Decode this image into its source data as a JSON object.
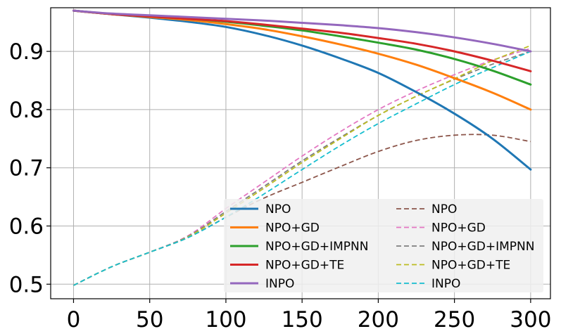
{
  "chart_data": {
    "type": "line",
    "title": "",
    "xlabel": "",
    "ylabel": "",
    "xlim": [
      -15,
      313
    ],
    "ylim": [
      0.475,
      0.975
    ],
    "x_ticks": [
      0,
      50,
      100,
      150,
      200,
      250,
      300
    ],
    "y_ticks": [
      0.5,
      0.6,
      0.7,
      0.8,
      0.9
    ],
    "grid": true,
    "legend_placement": "lower-right",
    "x": [
      0,
      25,
      50,
      75,
      100,
      125,
      150,
      175,
      200,
      225,
      250,
      275,
      300
    ],
    "series": [
      {
        "name": "NPO",
        "color": "#1f77b4",
        "style": "solid",
        "values": [
          0.97,
          0.964,
          0.958,
          0.951,
          0.942,
          0.928,
          0.91,
          0.888,
          0.863,
          0.83,
          0.793,
          0.75,
          0.697
        ]
      },
      {
        "name": "NPO+GD",
        "color": "#ff7f0e",
        "style": "solid",
        "values": [
          0.97,
          0.964,
          0.959,
          0.954,
          0.947,
          0.938,
          0.926,
          0.912,
          0.896,
          0.877,
          0.854,
          0.829,
          0.8
        ]
      },
      {
        "name": "NPO+GD+IMPNN",
        "color": "#2ca02c",
        "style": "solid",
        "values": [
          0.97,
          0.964,
          0.96,
          0.956,
          0.951,
          0.944,
          0.936,
          0.926,
          0.915,
          0.903,
          0.887,
          0.867,
          0.843
        ]
      },
      {
        "name": "NPO+GD+TE",
        "color": "#d62728",
        "style": "solid",
        "values": [
          0.97,
          0.964,
          0.96,
          0.956,
          0.952,
          0.946,
          0.939,
          0.932,
          0.923,
          0.913,
          0.9,
          0.884,
          0.866
        ]
      },
      {
        "name": "INPO",
        "color": "#9467bd",
        "style": "solid",
        "values": [
          0.97,
          0.965,
          0.962,
          0.959,
          0.956,
          0.953,
          0.949,
          0.945,
          0.94,
          0.933,
          0.924,
          0.913,
          0.9
        ]
      },
      {
        "name": "NPO",
        "color": "#8c564b",
        "style": "dashed",
        "values": [
          0.498,
          0.53,
          0.555,
          0.58,
          0.615,
          0.648,
          0.675,
          0.702,
          0.728,
          0.747,
          0.756,
          0.756,
          0.745
        ]
      },
      {
        "name": "NPO+GD",
        "color": "#e377c2",
        "style": "dashed",
        "values": [
          0.498,
          0.53,
          0.555,
          0.583,
          0.63,
          0.675,
          0.72,
          0.762,
          0.8,
          0.832,
          0.86,
          0.885,
          0.905
        ]
      },
      {
        "name": "NPO+GD+IMPNN",
        "color": "#7f7f7f",
        "style": "dashed",
        "values": [
          0.498,
          0.53,
          0.555,
          0.582,
          0.625,
          0.668,
          0.712,
          0.752,
          0.79,
          0.823,
          0.852,
          0.878,
          0.9
        ]
      },
      {
        "name": "NPO+GD+TE",
        "color": "#bcbd22",
        "style": "dashed",
        "values": [
          0.498,
          0.53,
          0.555,
          0.581,
          0.622,
          0.665,
          0.709,
          0.75,
          0.79,
          0.823,
          0.853,
          0.884,
          0.91
        ]
      },
      {
        "name": "INPO",
        "color": "#17becf",
        "style": "dashed",
        "values": [
          0.498,
          0.53,
          0.555,
          0.58,
          0.615,
          0.655,
          0.697,
          0.738,
          0.776,
          0.81,
          0.843,
          0.872,
          0.9
        ]
      }
    ]
  }
}
